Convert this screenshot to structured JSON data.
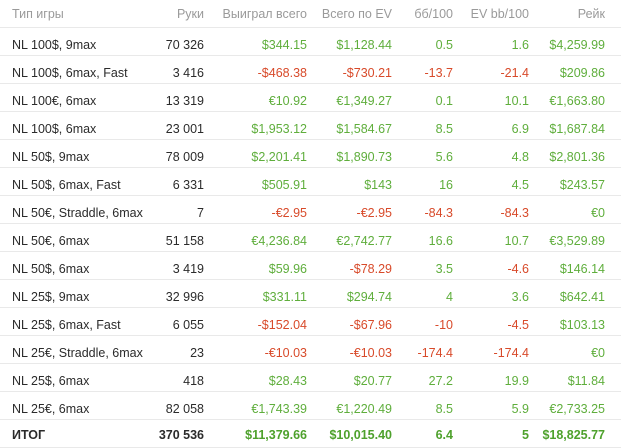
{
  "colors": {
    "positive": "#5fae3c",
    "negative": "#d84a2a",
    "header": "#9a9a9a"
  },
  "headers": [
    "Тип игры",
    "Руки",
    "Выиграл всего",
    "Всего по EV",
    "бб/100",
    "EV bb/100",
    "Рейк"
  ],
  "rows": [
    {
      "game": "NL 100$, 9max",
      "hands": "70 326",
      "won": "$344.15",
      "ev": "$1,128.44",
      "bb100": "0.5",
      "evbb100": "1.6",
      "rake": "$4,259.99",
      "won_s": "pos",
      "ev_s": "pos",
      "bb_s": "pos",
      "evbb_s": "pos",
      "rake_s": "pos"
    },
    {
      "game": "NL 100$, 6max, Fast",
      "hands": "3 416",
      "won": "-$468.38",
      "ev": "-$730.21",
      "bb100": "-13.7",
      "evbb100": "-21.4",
      "rake": "$209.86",
      "won_s": "neg",
      "ev_s": "neg",
      "bb_s": "neg",
      "evbb_s": "neg",
      "rake_s": "pos"
    },
    {
      "game": "NL 100€, 6max",
      "hands": "13 319",
      "won": "€10.92",
      "ev": "€1,349.27",
      "bb100": "0.1",
      "evbb100": "10.1",
      "rake": "€1,663.80",
      "won_s": "pos",
      "ev_s": "pos",
      "bb_s": "pos",
      "evbb_s": "pos",
      "rake_s": "pos"
    },
    {
      "game": "NL 100$, 6max",
      "hands": "23 001",
      "won": "$1,953.12",
      "ev": "$1,584.67",
      "bb100": "8.5",
      "evbb100": "6.9",
      "rake": "$1,687.84",
      "won_s": "pos",
      "ev_s": "pos",
      "bb_s": "pos",
      "evbb_s": "pos",
      "rake_s": "pos"
    },
    {
      "game": "NL 50$, 9max",
      "hands": "78 009",
      "won": "$2,201.41",
      "ev": "$1,890.73",
      "bb100": "5.6",
      "evbb100": "4.8",
      "rake": "$2,801.36",
      "won_s": "pos",
      "ev_s": "pos",
      "bb_s": "pos",
      "evbb_s": "pos",
      "rake_s": "pos"
    },
    {
      "game": "NL 50$, 6max, Fast",
      "hands": "6 331",
      "won": "$505.91",
      "ev": "$143",
      "bb100": "16",
      "evbb100": "4.5",
      "rake": "$243.57",
      "won_s": "pos",
      "ev_s": "pos",
      "bb_s": "pos",
      "evbb_s": "pos",
      "rake_s": "pos"
    },
    {
      "game": "NL 50€, Straddle, 6max",
      "hands": "7",
      "won": "-€2.95",
      "ev": "-€2.95",
      "bb100": "-84.3",
      "evbb100": "-84.3",
      "rake": "€0",
      "won_s": "neg",
      "ev_s": "neg",
      "bb_s": "neg",
      "evbb_s": "neg",
      "rake_s": "pos"
    },
    {
      "game": "NL 50€, 6max",
      "hands": "51 158",
      "won": "€4,236.84",
      "ev": "€2,742.77",
      "bb100": "16.6",
      "evbb100": "10.7",
      "rake": "€3,529.89",
      "won_s": "pos",
      "ev_s": "pos",
      "bb_s": "pos",
      "evbb_s": "pos",
      "rake_s": "pos"
    },
    {
      "game": "NL 50$, 6max",
      "hands": "3 419",
      "won": "$59.96",
      "ev": "-$78.29",
      "bb100": "3.5",
      "evbb100": "-4.6",
      "rake": "$146.14",
      "won_s": "pos",
      "ev_s": "neg",
      "bb_s": "pos",
      "evbb_s": "neg",
      "rake_s": "pos"
    },
    {
      "game": "NL 25$, 9max",
      "hands": "32 996",
      "won": "$331.11",
      "ev": "$294.74",
      "bb100": "4",
      "evbb100": "3.6",
      "rake": "$642.41",
      "won_s": "pos",
      "ev_s": "pos",
      "bb_s": "pos",
      "evbb_s": "pos",
      "rake_s": "pos"
    },
    {
      "game": "NL 25$, 6max, Fast",
      "hands": "6 055",
      "won": "-$152.04",
      "ev": "-$67.96",
      "bb100": "-10",
      "evbb100": "-4.5",
      "rake": "$103.13",
      "won_s": "neg",
      "ev_s": "neg",
      "bb_s": "neg",
      "evbb_s": "neg",
      "rake_s": "pos"
    },
    {
      "game": "NL 25€, Straddle, 6max",
      "hands": "23",
      "won": "-€10.03",
      "ev": "-€10.03",
      "bb100": "-174.4",
      "evbb100": "-174.4",
      "rake": "€0",
      "won_s": "neg",
      "ev_s": "neg",
      "bb_s": "neg",
      "evbb_s": "neg",
      "rake_s": "pos"
    },
    {
      "game": "NL 25$, 6max",
      "hands": "418",
      "won": "$28.43",
      "ev": "$20.77",
      "bb100": "27.2",
      "evbb100": "19.9",
      "rake": "$11.84",
      "won_s": "pos",
      "ev_s": "pos",
      "bb_s": "pos",
      "evbb_s": "pos",
      "rake_s": "pos"
    },
    {
      "game": "NL 25€, 6max",
      "hands": "82 058",
      "won": "€1,743.39",
      "ev": "€1,220.49",
      "bb100": "8.5",
      "evbb100": "5.9",
      "rake": "€2,733.25",
      "won_s": "pos",
      "ev_s": "pos",
      "bb_s": "pos",
      "evbb_s": "pos",
      "rake_s": "pos"
    }
  ],
  "total": {
    "game": "ИТОГ",
    "hands": "370 536",
    "won": "$11,379.66",
    "ev": "$10,015.40",
    "bb100": "6.4",
    "evbb100": "5",
    "rake": "$18,825.77"
  }
}
